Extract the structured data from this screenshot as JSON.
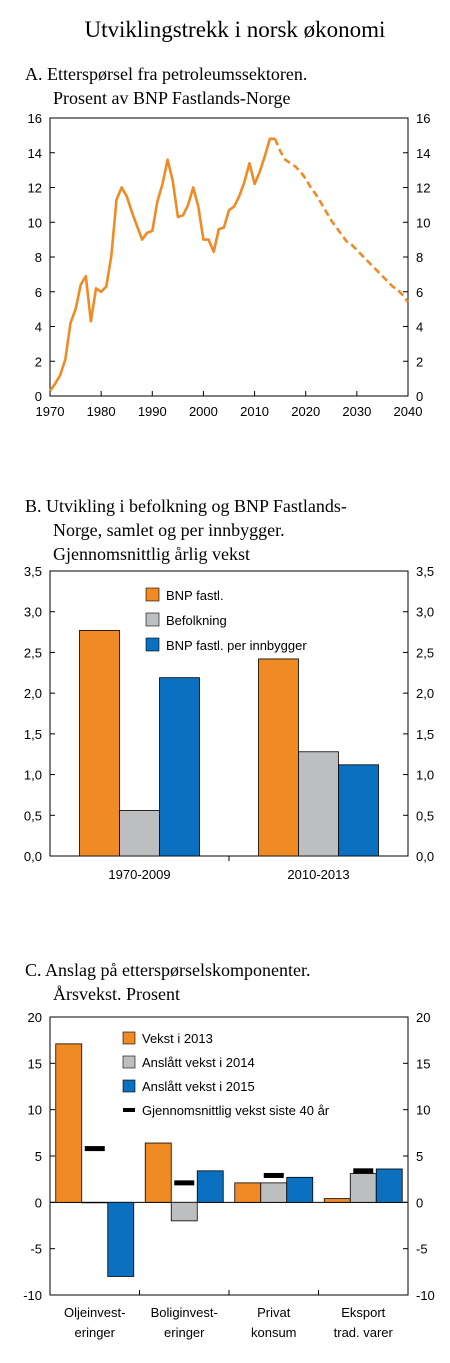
{
  "page_title": "Utviklingstrekk  i norsk økonomi",
  "chart_data": [
    {
      "type": "line",
      "title_line1": "A.  Etterspørsel fra petroleumssektoren.",
      "title_line2": "Prosent av BNP Fastlands-Norge",
      "xlim": [
        1970,
        2040
      ],
      "ylim": [
        0,
        16
      ],
      "x_ticks": [
        "1970",
        "1980",
        "1990",
        "2000",
        "2010",
        "2020",
        "2030",
        "2040"
      ],
      "y_ticks": [
        "0",
        "2",
        "4",
        "6",
        "8",
        "10",
        "12",
        "14",
        "16"
      ],
      "color": "#f08a24",
      "series": [
        {
          "style": "solid",
          "x": [
            1970,
            1971,
            1972,
            1973,
            1974,
            1975,
            1976,
            1977,
            1978,
            1979,
            1980,
            1981,
            1982,
            1983,
            1984,
            1985,
            1986,
            1987,
            1988,
            1989,
            1990,
            1991,
            1992,
            1993,
            1994,
            1995,
            1996,
            1997,
            1998,
            1999,
            2000,
            2001,
            2002,
            2003,
            2004,
            2005,
            2006,
            2007,
            2008,
            2009,
            2010,
            2011,
            2012,
            2013,
            2014
          ],
          "y": [
            0.3,
            0.7,
            1.2,
            2.1,
            4.2,
            5.0,
            6.4,
            6.9,
            4.3,
            6.2,
            6.0,
            6.3,
            8.1,
            11.3,
            12.0,
            11.5,
            10.6,
            9.8,
            9.0,
            9.4,
            9.5,
            11.2,
            12.2,
            13.6,
            12.4,
            10.3,
            10.4,
            11.0,
            12.0,
            10.9,
            9.0,
            9.0,
            8.3,
            9.6,
            9.7,
            10.7,
            10.9,
            11.5,
            12.3,
            13.4,
            12.2,
            12.9,
            13.8,
            14.8,
            14.8
          ]
        },
        {
          "style": "dashed",
          "x": [
            2014,
            2015,
            2016,
            2017,
            2018,
            2019,
            2020,
            2021,
            2022,
            2023,
            2024,
            2025,
            2026,
            2027,
            2028,
            2029,
            2030,
            2031,
            2032,
            2033,
            2034,
            2035,
            2036,
            2037,
            2038,
            2039,
            2040
          ],
          "y": [
            14.8,
            14.1,
            13.6,
            13.4,
            13.2,
            12.9,
            12.5,
            12.0,
            11.6,
            11.1,
            10.6,
            10.1,
            9.7,
            9.3,
            8.9,
            8.7,
            8.4,
            8.1,
            7.8,
            7.5,
            7.2,
            6.9,
            6.6,
            6.3,
            6.1,
            5.8,
            5.4
          ]
        }
      ]
    },
    {
      "type": "bar",
      "title_line1": "B.  Utvikling i befolkning og BNP Fastlands-",
      "title_line2": "Norge, samlet og per innbygger.",
      "title_line3": "Gjennomsnittlig årlig vekst",
      "categories": [
        "1970-2009",
        "2010-2013"
      ],
      "ylim": [
        0,
        3.5
      ],
      "y_ticks": [
        "0,0",
        "0,5",
        "1,0",
        "1,5",
        "2,0",
        "2,5",
        "3,0",
        "3,5"
      ],
      "series": [
        {
          "name": "BNP fastl.",
          "color": "#f08a24",
          "values": [
            2.77,
            2.42
          ]
        },
        {
          "name": "Befolkning",
          "color": "#bdbec0",
          "values": [
            0.56,
            1.28
          ]
        },
        {
          "name": "BNP fastl. per innbygger",
          "color": "#0c70c0",
          "values": [
            2.19,
            1.12
          ]
        }
      ]
    },
    {
      "type": "bar",
      "title_line1": "C.  Anslag på etterspørselskomponenter.",
      "title_line2": "Årsvekst.  Prosent",
      "categories": [
        [
          "Oljeinvest-",
          "eringer"
        ],
        [
          "Boliginvest-",
          "eringer"
        ],
        [
          "Privat",
          "konsum"
        ],
        [
          "Eksport",
          "trad. varer"
        ]
      ],
      "ylim": [
        -10,
        20
      ],
      "y_ticks": [
        "-10",
        "-5",
        "0",
        "5",
        "10",
        "15",
        "20"
      ],
      "series": [
        {
          "name": "Vekst i 2013",
          "color": "#f08a24",
          "values": [
            17.1,
            6.4,
            2.1,
            0.4
          ]
        },
        {
          "name": "Anslått vekst i 2014",
          "color": "#bdbec0",
          "values": [
            0.0,
            -2.0,
            2.1,
            3.1
          ]
        },
        {
          "name": "Anslått vekst i 2015",
          "color": "#0c70c0",
          "values": [
            -8.0,
            3.4,
            2.7,
            3.6
          ]
        }
      ],
      "markers": {
        "name": "Gjennomsnittlig vekst siste 40 år",
        "color": "#000000",
        "values": [
          5.8,
          2.1,
          2.9,
          3.4
        ]
      }
    }
  ]
}
